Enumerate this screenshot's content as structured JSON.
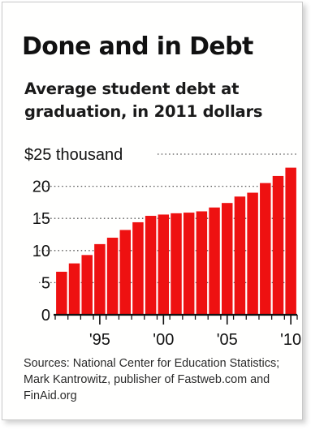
{
  "chart_data": {
    "type": "bar",
    "title": "Done and in Debt",
    "subtitle": "Average student debt at graduation, in 2011 dollars",
    "xlabel": "",
    "ylabel": "",
    "ylim": [
      0,
      25
    ],
    "yticks": [
      {
        "value": 25,
        "label": "$25 thousand"
      },
      {
        "value": 20,
        "label": "20"
      },
      {
        "value": 15,
        "label": "15"
      },
      {
        "value": 10,
        "label": "10"
      },
      {
        "value": 5,
        "label": "5"
      },
      {
        "value": 0,
        "label": "0"
      }
    ],
    "xtick_labels": [
      {
        "year": 1995,
        "label": "'95"
      },
      {
        "year": 2000,
        "label": "'00"
      },
      {
        "year": 2005,
        "label": "'05"
      },
      {
        "year": 2010,
        "label": "'10"
      }
    ],
    "categories": [
      1992,
      1993,
      1994,
      1995,
      1996,
      1997,
      1998,
      1999,
      2000,
      2001,
      2002,
      2003,
      2004,
      2005,
      2006,
      2007,
      2008,
      2009,
      2010
    ],
    "values": [
      6.7,
      8.0,
      9.3,
      11.0,
      12.0,
      13.2,
      14.4,
      15.4,
      15.6,
      15.8,
      15.9,
      16.1,
      16.7,
      17.4,
      18.4,
      19.0,
      20.5,
      21.6,
      22.9
    ],
    "grid": true,
    "bar_color": "#ee1111"
  },
  "source_note": "Sources: National Center for Education Statistics; Mark Kantrowitz, publisher of Fastweb.com and FinAid.org"
}
